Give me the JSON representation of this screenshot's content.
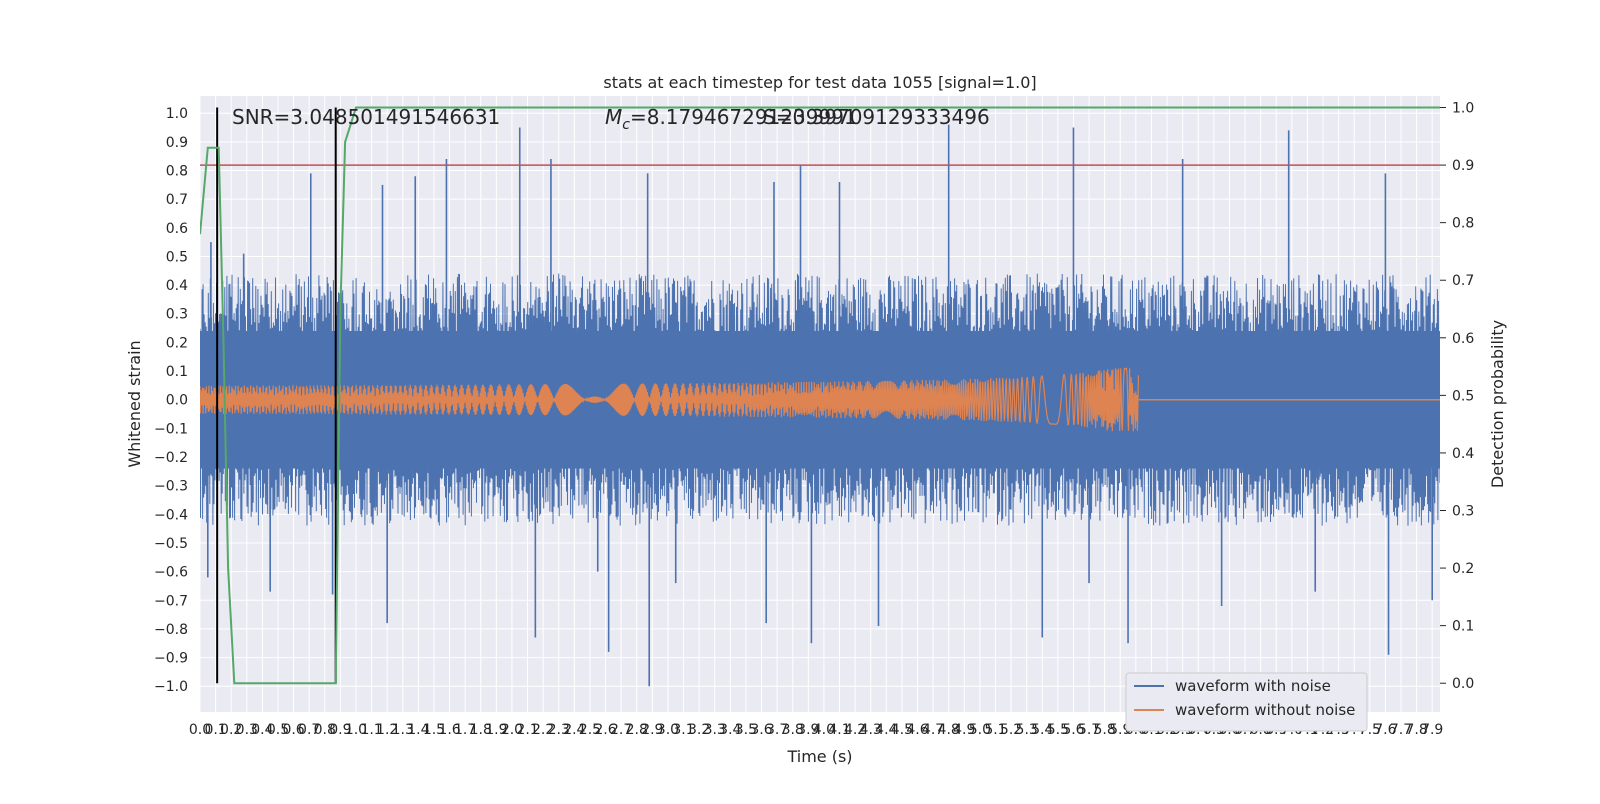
{
  "chart_data": {
    "type": "line",
    "title": "stats at each timestep for test data 1055 [signal=1.0]",
    "xlabel": "Time (s)",
    "ylabel": "Whitened strain",
    "ylabel_right": "Detection probability",
    "xlim": [
      0.0,
      7.95
    ],
    "ylim": [
      -1.09,
      1.06
    ],
    "ylim_right": [
      -0.05,
      1.02
    ],
    "x_ticks": [
      "0.0",
      "0.1",
      "0.2",
      "0.3",
      "0.4",
      "0.5",
      "0.6",
      "0.7",
      "0.8",
      "0.9",
      "1.0",
      "1.1",
      "1.2",
      "1.3",
      "1.4",
      "1.5",
      "1.6",
      "1.7",
      "1.8",
      "1.9",
      "2.0",
      "2.1",
      "2.2",
      "2.3",
      "2.4",
      "2.5",
      "2.6",
      "2.7",
      "2.8",
      "2.9",
      "3.0",
      "3.1",
      "3.2",
      "3.3",
      "3.4",
      "3.5",
      "3.6",
      "3.7",
      "3.8",
      "3.9",
      "4.0",
      "4.1",
      "4.2",
      "4.3",
      "4.4",
      "4.5",
      "4.6",
      "4.7",
      "4.8",
      "4.9",
      "5.0",
      "5.1",
      "5.2",
      "5.3",
      "5.4",
      "5.5",
      "5.6",
      "5.7",
      "5.8",
      "5.9",
      "6.0",
      "6.1",
      "6.2",
      "6.3",
      "6.4",
      "6.5",
      "6.6",
      "6.7",
      "6.8",
      "6.9",
      "7.0",
      "7.1",
      "7.2",
      "7.3",
      "7.4",
      "7.5",
      "7.6",
      "7.7",
      "7.8",
      "7.9"
    ],
    "y_ticks": [
      "1.0",
      "0.9",
      "0.8",
      "0.7",
      "0.6",
      "0.5",
      "0.4",
      "0.3",
      "0.2",
      "0.1",
      "0.0",
      "−0.1",
      "−0.2",
      "−0.3",
      "−0.4",
      "−0.5",
      "−0.6",
      "−0.7",
      "−0.8",
      "−0.9",
      "−1.0"
    ],
    "y_ticks_right": [
      "1.0",
      "0.9",
      "0.8",
      "0.7",
      "0.6",
      "0.5",
      "0.4",
      "0.3",
      "0.2",
      "0.1",
      "0.0"
    ],
    "annotations": {
      "snr": "SNR=3.048501491546631",
      "mc": "=8.179467291239991",
      "mc_symbol": "M",
      "mc_sub": "c",
      "overlap": "S=0.39709129333496"
    },
    "vlines_x": [
      0.11,
      0.87
    ],
    "threshold_right": 0.9,
    "noise_series": {
      "name": "waveform with noise",
      "color": "#4c72b0",
      "band": [
        -0.4,
        0.4
      ],
      "spikes": [
        [
          0.07,
          0.55
        ],
        [
          0.28,
          0.51
        ],
        [
          0.71,
          0.79
        ],
        [
          1.17,
          0.75
        ],
        [
          1.38,
          0.78
        ],
        [
          1.58,
          0.84
        ],
        [
          2.05,
          0.95
        ],
        [
          2.25,
          0.84
        ],
        [
          2.87,
          0.79
        ],
        [
          3.68,
          0.76
        ],
        [
          3.85,
          0.82
        ],
        [
          4.1,
          0.76
        ],
        [
          4.8,
          0.96
        ],
        [
          5.6,
          0.95
        ],
        [
          6.3,
          0.84
        ],
        [
          6.98,
          0.94
        ],
        [
          7.6,
          0.79
        ],
        [
          0.05,
          -0.62
        ],
        [
          0.45,
          -0.67
        ],
        [
          0.85,
          -0.68
        ],
        [
          1.2,
          -0.78
        ],
        [
          2.15,
          -0.83
        ],
        [
          2.55,
          -0.6
        ],
        [
          2.62,
          -0.88
        ],
        [
          2.88,
          -1.0
        ],
        [
          3.05,
          -0.64
        ],
        [
          3.63,
          -0.78
        ],
        [
          3.92,
          -0.85
        ],
        [
          4.35,
          -0.79
        ],
        [
          5.4,
          -0.83
        ],
        [
          5.7,
          -0.64
        ],
        [
          5.95,
          -0.85
        ],
        [
          6.55,
          -0.72
        ],
        [
          7.15,
          -0.67
        ],
        [
          7.62,
          -0.89
        ],
        [
          7.9,
          -0.7
        ]
      ]
    },
    "clean_series": {
      "name": "waveform without noise",
      "color": "#dd8452",
      "merger_time": 6.02,
      "peak_amplitude": 0.11
    },
    "probability_series": {
      "name": "detection probability",
      "color": "#55a868",
      "x": [
        0.0,
        0.05,
        0.12,
        0.15,
        0.18,
        0.22,
        0.25,
        0.5,
        0.87,
        0.9,
        0.93,
        1.0,
        7.95
      ],
      "y": [
        0.78,
        0.93,
        0.93,
        0.6,
        0.2,
        0.0,
        0.0,
        0.0,
        0.0,
        0.65,
        0.94,
        1.0,
        1.0
      ]
    },
    "legend": {
      "position": "lower-right",
      "entries": [
        "waveform with noise",
        "waveform without noise"
      ]
    },
    "grid": true,
    "colors": {
      "background": "#eaeaf2",
      "grid": "#ffffff",
      "vline": "#000000",
      "threshold": "#c44e52",
      "text": "#262626"
    }
  }
}
